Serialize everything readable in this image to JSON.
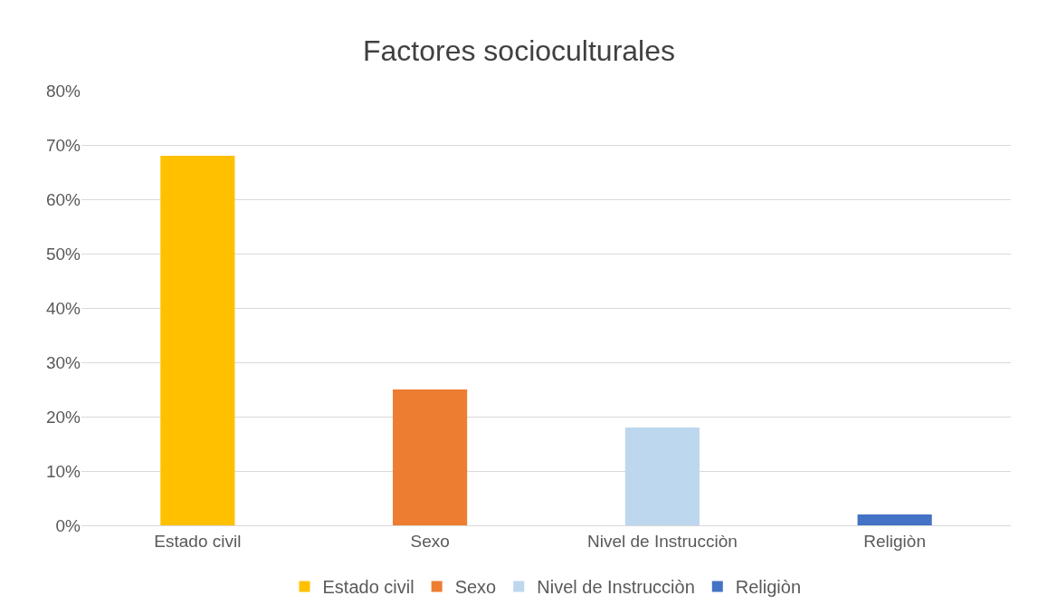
{
  "chart_data": {
    "type": "bar",
    "title": "Factores socioculturales",
    "categories": [
      "Estado civil",
      "Sexo",
      "Nivel de Instrucciòn",
      "Religiòn"
    ],
    "series": [
      {
        "name": "Estado civil",
        "color": "#ffc000",
        "values": [
          68,
          null,
          null,
          null
        ]
      },
      {
        "name": "Sexo",
        "color": "#ed7d31",
        "values": [
          null,
          25,
          null,
          null
        ]
      },
      {
        "name": "Nivel de Instrucciòn",
        "color": "#bdd7ee",
        "values": [
          null,
          null,
          18,
          null
        ]
      },
      {
        "name": "Religiòn",
        "color": "#4472c4",
        "values": [
          null,
          null,
          null,
          2
        ]
      }
    ],
    "ylim": [
      0,
      80
    ],
    "yticks": [
      {
        "value": 0,
        "label": "0%"
      },
      {
        "value": 10,
        "label": "10%"
      },
      {
        "value": 20,
        "label": "20%"
      },
      {
        "value": 30,
        "label": "30%"
      },
      {
        "value": 40,
        "label": "40%"
      },
      {
        "value": 50,
        "label": "50%"
      },
      {
        "value": 60,
        "label": "60%"
      },
      {
        "value": 70,
        "label": "70%"
      },
      {
        "value": 80,
        "label": "80%"
      }
    ],
    "grid": "y",
    "legend": "bottom"
  }
}
